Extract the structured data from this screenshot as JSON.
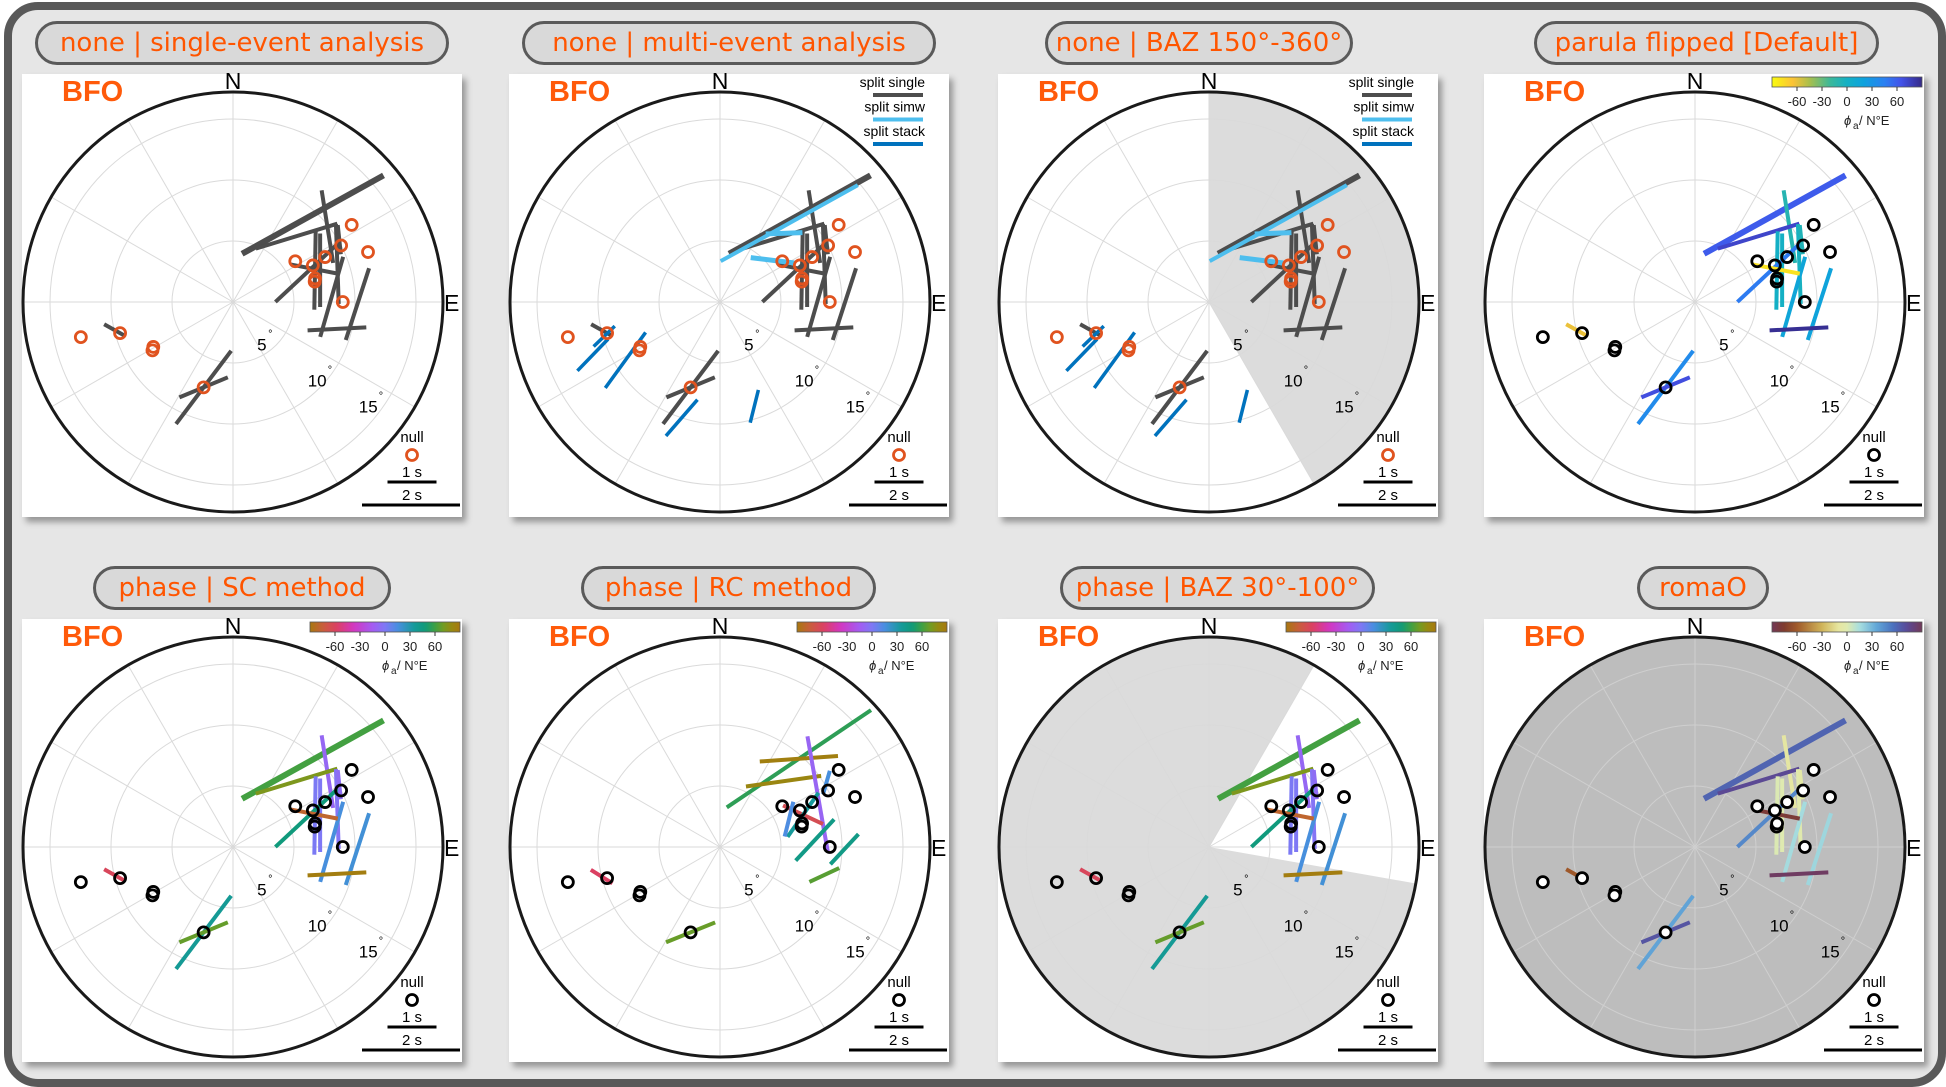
{
  "panels": [
    {
      "title": "none | single-event analysis",
      "station": "BFO",
      "mode": "single",
      "colormap": "none",
      "legend": "null",
      "shade_outside": null,
      "background": null,
      "dataset": "sc"
    },
    {
      "title": "none | multi-event analysis",
      "station": "BFO",
      "mode": "multi",
      "colormap": "none",
      "legend": "split",
      "shade_outside": null,
      "background": null,
      "dataset": "sc"
    },
    {
      "title": "none | BAZ 150°-360°",
      "station": "BFO",
      "mode": "multi",
      "colormap": "none",
      "legend": "split",
      "shade_outside": [
        150,
        360
      ],
      "background": null,
      "dataset": "sc"
    },
    {
      "title": "parula flipped [Default]",
      "station": "BFO",
      "mode": "single",
      "colormap": "parula_flipped",
      "legend": "colorbar",
      "shade_outside": null,
      "background": null,
      "dataset": "sc"
    },
    {
      "title": "phase | SC method",
      "station": "BFO",
      "mode": "single",
      "colormap": "phase",
      "legend": "colorbar",
      "shade_outside": null,
      "background": null,
      "dataset": "sc"
    },
    {
      "title": "phase | RC method",
      "station": "BFO",
      "mode": "single",
      "colormap": "phase",
      "legend": "colorbar",
      "shade_outside": null,
      "background": null,
      "dataset": "rc"
    },
    {
      "title": "phase | BAZ 30°-100°",
      "station": "BFO",
      "mode": "single",
      "colormap": "phase",
      "legend": "colorbar",
      "shade_outside": [
        30,
        100
      ],
      "background": null,
      "dataset": "sc"
    },
    {
      "title": "romaO",
      "station": "BFO",
      "mode": "single",
      "colormap": "romaO",
      "legend": "colorbar",
      "shade_outside": null,
      "background": "#bdbdbd",
      "dataset": "sc"
    }
  ],
  "chart_data": {
    "type": "polar",
    "directions": {
      "north": "N",
      "east": "E"
    },
    "radial_ticks": [
      5,
      10,
      15
    ],
    "radial_unit": "°",
    "grid": true,
    "grid_spoke_step_deg": 30,
    "legend_placement": "top-right",
    "null_label": "null",
    "scale_bars": [
      {
        "value": 1,
        "label": "1 s"
      },
      {
        "value": 2,
        "label": "2 s"
      }
    ],
    "split_legend": [
      {
        "label": "split single",
        "color": "#4d4d4d"
      },
      {
        "label": "split simw",
        "color": "#4dbeee"
      },
      {
        "label": "split stack",
        "color": "#0072bd"
      }
    ],
    "colors": {
      "null_none": "#e0531f",
      "null_colored": "#000000",
      "shade": "#dcdcdc",
      "station": "#ff5a0a",
      "title": "#ff5500"
    },
    "colorbar": {
      "ticks": [
        -60,
        -30,
        0,
        30,
        60
      ],
      "range": [
        -90,
        90
      ],
      "label_symbol": "ϕ",
      "label_sub": "a",
      "label_unit": " / N°E"
    },
    "colormaps": {
      "parula_flipped": [
        [
          -90,
          "#f9fb0e"
        ],
        [
          -65,
          "#fbc236"
        ],
        [
          -45,
          "#a9bf4c"
        ],
        [
          -20,
          "#3bb89a"
        ],
        [
          0,
          "#14b0c4"
        ],
        [
          20,
          "#0ea2dd"
        ],
        [
          45,
          "#2b80f2"
        ],
        [
          65,
          "#4352e9"
        ],
        [
          90,
          "#352a87"
        ]
      ],
      "phase": [
        [
          -90,
          "#a8780f"
        ],
        [
          -72,
          "#cd5a43"
        ],
        [
          -58,
          "#db4062"
        ],
        [
          -38,
          "#d336c0"
        ],
        [
          -15,
          "#a45cf2"
        ],
        [
          0,
          "#7f78f5"
        ],
        [
          15,
          "#4a8ee0"
        ],
        [
          35,
          "#169a9a"
        ],
        [
          48,
          "#0f9a7a"
        ],
        [
          60,
          "#3ea044"
        ],
        [
          70,
          "#729c22"
        ],
        [
          80,
          "#978a12"
        ],
        [
          90,
          "#a8780f"
        ]
      ],
      "romaO": [
        [
          -90,
          "#733957"
        ],
        [
          -76,
          "#7e3b2f"
        ],
        [
          -60,
          "#a05a2a"
        ],
        [
          -30,
          "#d0b45a"
        ],
        [
          -10,
          "#e6e6a0"
        ],
        [
          0,
          "#dfeab0"
        ],
        [
          15,
          "#a8dede"
        ],
        [
          35,
          "#63a8d8"
        ],
        [
          55,
          "#4b72bf"
        ],
        [
          72,
          "#5a4a98"
        ],
        [
          90,
          "#733957"
        ]
      ]
    },
    "splits_sc": [
      {
        "baz": 42.4,
        "inc": 9.7,
        "phi": 61,
        "dt": 3.3,
        "heavy": true
      },
      {
        "baz": 51.4,
        "inc": 9.9,
        "phi": -9,
        "dt": 1.5
      },
      {
        "baz": 44,
        "inc": 7.5,
        "phi": 73,
        "dt": 1.74
      },
      {
        "baz": 69,
        "inc": 7.2,
        "phi": 1,
        "dt": 1.6
      },
      {
        "baz": 70,
        "inc": 7.6,
        "phi": 0,
        "dt": 1.5
      },
      {
        "baz": 70,
        "inc": 9.1,
        "phi": -2,
        "dt": 1.63
      },
      {
        "baz": 68,
        "inc": 6.6,
        "phi": 47,
        "dt": 1.8
      },
      {
        "baz": 87,
        "inc": 8.1,
        "phi": 16,
        "dt": 1.7
      },
      {
        "baz": 91,
        "inc": 10.2,
        "phi": 18,
        "dt": 1.54
      },
      {
        "baz": 104.5,
        "inc": 8.8,
        "phi": 87,
        "dt": 1.2
      },
      {
        "baz": 199,
        "inc": 7.4,
        "phi": 37,
        "dt": 1.87
      },
      {
        "baz": 199,
        "inc": 7.4,
        "phi": 67.5,
        "dt": 1.07
      },
      {
        "baz": 256.8,
        "inc": 10,
        "phi": -61,
        "dt": 0.47
      },
      {
        "baz": 68,
        "inc": 7.2,
        "phi": -79,
        "dt": 0.97
      },
      {
        "baz": 59.6,
        "inc": 10.1,
        "phi": -6,
        "dt": 0.6
      }
    ],
    "splits_rc": [
      {
        "baz": 41.8,
        "inc": 9.7,
        "phi": 56,
        "dt": 3.55
      },
      {
        "baz": 41.8,
        "inc": 9.7,
        "phi": 86,
        "dt": 1.6
      },
      {
        "baz": 44,
        "inc": 7.5,
        "phi": 82,
        "dt": 1.55
      },
      {
        "baz": 61.6,
        "inc": 9.1,
        "phi": -10,
        "dt": 2.4
      },
      {
        "baz": 68.8,
        "inc": 7.3,
        "phi": -65,
        "dt": 0.9
      },
      {
        "baz": 68.8,
        "inc": 7.3,
        "phi": 35,
        "dt": 1.1
      },
      {
        "baz": 85.8,
        "inc": 7.8,
        "phi": 43,
        "dt": 1.15
      },
      {
        "baz": 91,
        "inc": 10.2,
        "phi": 43,
        "dt": 0.84
      },
      {
        "baz": 105,
        "inc": 8.85,
        "phi": 65,
        "dt": 0.67
      },
      {
        "baz": 68,
        "inc": 6.1,
        "phi": 14,
        "dt": 0.73
      },
      {
        "baz": 58.8,
        "inc": 10.2,
        "phi": 16,
        "dt": 0.5
      },
      {
        "baz": 256,
        "inc": 10,
        "phi": -58,
        "dt": 0.52
      },
      {
        "baz": 199,
        "inc": 7.4,
        "phi": 68,
        "dt": 1.08
      }
    ],
    "splits_simw": [
      {
        "baz": 41.3,
        "inc": 8.6,
        "phi": 61,
        "dt": 3.2
      },
      {
        "baz": 51.6,
        "inc": 5.5,
        "phi": -83,
        "dt": 0.9
      },
      {
        "baz": 43,
        "inc": 7.7,
        "phi": 88,
        "dt": 0.75
      }
    ],
    "splits_stack": [
      {
        "baz": 253.5,
        "inc": 9.9,
        "phi": 46,
        "dt": 0.6
      },
      {
        "baz": 247.4,
        "inc": 11.3,
        "phi": 44,
        "dt": 0.9
      },
      {
        "baz": 238.4,
        "inc": 9.1,
        "phi": 36,
        "dt": 1.4
      },
      {
        "baz": 198.3,
        "inc": 10,
        "phi": 41,
        "dt": 0.98
      },
      {
        "baz": 161.8,
        "inc": 9,
        "phi": 14,
        "dt": 0.69
      }
    ],
    "nulls": [
      {
        "baz": 57,
        "inc": 11.6
      },
      {
        "baz": 62.4,
        "inc": 10
      },
      {
        "baz": 69.7,
        "inc": 11.8
      },
      {
        "baz": 56.8,
        "inc": 6.1
      },
      {
        "baz": 65.4,
        "inc": 7.2
      },
      {
        "baz": 64,
        "inc": 8.4
      },
      {
        "baz": 76,
        "inc": 6.9
      },
      {
        "baz": 74,
        "inc": 7.0
      },
      {
        "baz": 90,
        "inc": 9
      },
      {
        "baz": 257,
        "inc": 12.8
      },
      {
        "baz": 254.6,
        "inc": 9.6
      },
      {
        "baz": 240.6,
        "inc": 7.5
      },
      {
        "baz": 239,
        "inc": 7.7
      },
      {
        "baz": 199,
        "inc": 7.4
      }
    ]
  }
}
